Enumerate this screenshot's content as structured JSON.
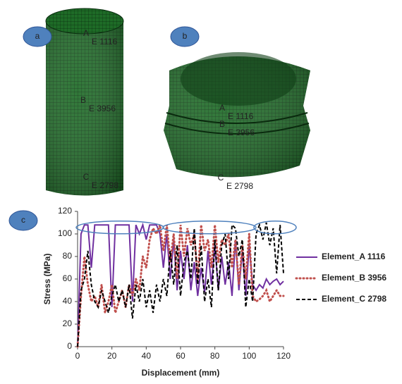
{
  "panel_labels": [
    "a",
    "b",
    "c"
  ],
  "mesh_a": {
    "points": [
      "A",
      "B",
      "C"
    ],
    "elements": [
      "E 1116",
      "E 3956",
      "E 2798"
    ]
  },
  "mesh_b": {
    "points": [
      "A",
      "B",
      "C"
    ],
    "elements": [
      "E 1116",
      "E 3956",
      "E 2798"
    ]
  },
  "chart_data": {
    "type": "line",
    "xlabel": "Displacement (mm)",
    "ylabel": "Stress (MPa)",
    "x": [
      0,
      2,
      4,
      6,
      8,
      10,
      12,
      14,
      16,
      18,
      20,
      22,
      24,
      26,
      28,
      30,
      32,
      34,
      36,
      38,
      40,
      42,
      44,
      46,
      48,
      50,
      52,
      54,
      56,
      58,
      60,
      62,
      64,
      66,
      68,
      70,
      72,
      74,
      76,
      78,
      80,
      82,
      84,
      86,
      88,
      90,
      92,
      94,
      96,
      98,
      100,
      102,
      104,
      106,
      108,
      110,
      112,
      114,
      116,
      118,
      120
    ],
    "xlim": [
      0,
      120
    ],
    "xticks": [
      0,
      20,
      40,
      60,
      80,
      100,
      120
    ],
    "ylim": [
      0,
      120
    ],
    "yticks": [
      0,
      20,
      40,
      60,
      80,
      100,
      120
    ],
    "legend": "right",
    "series": [
      {
        "name": "Element_A 1116",
        "color": "#7030a0",
        "dash": "solid",
        "values": [
          0,
          100,
          108,
          108,
          70,
          108,
          108,
          108,
          108,
          108,
          35,
          108,
          108,
          108,
          108,
          108,
          40,
          108,
          100,
          108,
          95,
          108,
          108,
          108,
          100,
          70,
          100,
          60,
          95,
          50,
          85,
          60,
          90,
          50,
          75,
          45,
          70,
          48,
          85,
          55,
          90,
          50,
          80,
          55,
          75,
          45,
          95,
          50,
          85,
          45,
          90,
          55,
          50,
          55,
          52,
          60,
          55,
          58,
          60,
          55,
          58
        ]
      },
      {
        "name": "Element_B 3956",
        "color": "#c0504d",
        "dash": "dotted",
        "values": [
          0,
          45,
          80,
          55,
          40,
          45,
          35,
          55,
          30,
          40,
          55,
          30,
          40,
          50,
          35,
          55,
          45,
          60,
          50,
          80,
          70,
          95,
          105,
          100,
          108,
          85,
          108,
          75,
          100,
          60,
          108,
          80,
          105,
          90,
          100,
          60,
          108,
          85,
          95,
          70,
          108,
          75,
          95,
          90,
          100,
          70,
          95,
          55,
          90,
          60,
          100,
          45,
          40,
          42,
          45,
          50,
          40,
          45,
          50,
          45,
          45
        ]
      },
      {
        "name": "Element_C 2798",
        "color": "#000000",
        "dash": "dashed",
        "values": [
          0,
          50,
          60,
          85,
          55,
          40,
          35,
          50,
          40,
          30,
          45,
          55,
          40,
          50,
          35,
          55,
          25,
          55,
          40,
          60,
          35,
          50,
          30,
          55,
          40,
          60,
          45,
          85,
          55,
          90,
          45,
          75,
          85,
          60,
          105,
          55,
          90,
          40,
          60,
          35,
          95,
          50,
          90,
          100,
          60,
          108,
          105,
          80,
          95,
          35,
          60,
          40,
          100,
          108,
          95,
          110,
          90,
          105,
          65,
          108,
          65
        ]
      }
    ]
  }
}
